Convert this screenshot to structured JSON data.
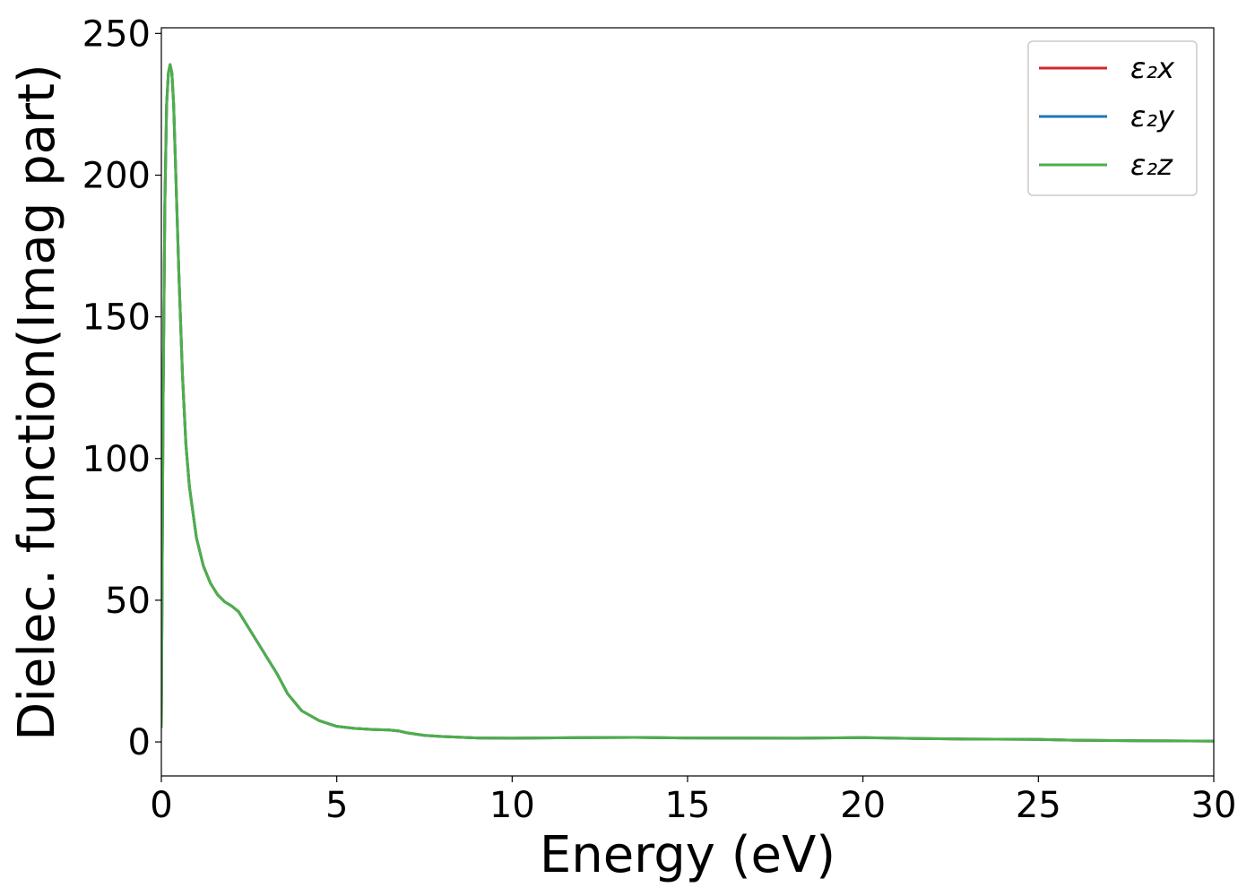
{
  "chart_data": {
    "type": "line",
    "title": "",
    "xlabel": "Energy (eV)",
    "ylabel": "Dielec. function(Imag part)",
    "xlim": [
      0,
      30
    ],
    "ylim": [
      -12,
      252
    ],
    "xticks": [
      0,
      5,
      10,
      15,
      20,
      25,
      30
    ],
    "yticks": [
      0,
      50,
      100,
      150,
      200,
      250
    ],
    "grid": false,
    "legend_position": "top-right",
    "series": [
      {
        "name": "ε₂x",
        "legend_sub": "x",
        "color": "#d62728",
        "x": [
          0,
          0.05,
          0.1,
          0.15,
          0.2,
          0.25,
          0.3,
          0.35,
          0.4,
          0.5,
          0.6,
          0.7,
          0.8,
          1.0,
          1.2,
          1.4,
          1.6,
          1.8,
          2.0,
          2.2,
          2.4,
          2.6,
          2.8,
          3.0,
          3.3,
          3.6,
          4.0,
          4.5,
          5.0,
          5.5,
          6.0,
          6.5,
          6.8,
          7.0,
          7.5,
          8.0,
          9.0,
          10.0,
          12.0,
          13.5,
          15.0,
          18.0,
          20.0,
          21.0,
          23.0,
          25.0,
          26.0,
          28.0,
          30.0
        ],
        "y": [
          5,
          120,
          190,
          225,
          236,
          239,
          236,
          225,
          205,
          165,
          130,
          105,
          90,
          72,
          62,
          56,
          52,
          49.5,
          48,
          46,
          42,
          38,
          34,
          30,
          24,
          17,
          11,
          7.5,
          5.5,
          4.8,
          4.4,
          4.2,
          3.8,
          3.2,
          2.3,
          1.9,
          1.4,
          1.3,
          1.5,
          1.6,
          1.4,
          1.3,
          1.5,
          1.3,
          1.0,
          0.9,
          0.6,
          0.4,
          0.3
        ]
      },
      {
        "name": "ε₂y",
        "legend_sub": "y",
        "color": "#1f77b4",
        "x": [
          0,
          0.05,
          0.1,
          0.15,
          0.2,
          0.25,
          0.3,
          0.35,
          0.4,
          0.5,
          0.6,
          0.7,
          0.8,
          1.0,
          1.2,
          1.4,
          1.6,
          1.8,
          2.0,
          2.2,
          2.4,
          2.6,
          2.8,
          3.0,
          3.3,
          3.6,
          4.0,
          4.5,
          5.0,
          5.5,
          6.0,
          6.5,
          6.8,
          7.0,
          7.5,
          8.0,
          9.0,
          10.0,
          12.0,
          13.5,
          15.0,
          18.0,
          20.0,
          21.0,
          23.0,
          25.0,
          26.0,
          28.0,
          30.0
        ],
        "y": [
          5,
          120,
          190,
          225,
          236,
          239,
          236,
          225,
          205,
          165,
          130,
          105,
          90,
          72,
          62,
          56,
          52,
          49.5,
          48,
          46,
          42,
          38,
          34,
          30,
          24,
          17,
          11,
          7.5,
          5.5,
          4.8,
          4.4,
          4.2,
          3.8,
          3.2,
          2.3,
          1.9,
          1.4,
          1.3,
          1.5,
          1.6,
          1.4,
          1.3,
          1.5,
          1.3,
          1.0,
          0.9,
          0.6,
          0.4,
          0.3
        ]
      },
      {
        "name": "ε₂z",
        "legend_sub": "z",
        "color": "#4daf4a",
        "x": [
          0,
          0.05,
          0.1,
          0.15,
          0.2,
          0.25,
          0.3,
          0.35,
          0.4,
          0.5,
          0.6,
          0.7,
          0.8,
          1.0,
          1.2,
          1.4,
          1.6,
          1.8,
          2.0,
          2.2,
          2.4,
          2.6,
          2.8,
          3.0,
          3.3,
          3.6,
          4.0,
          4.5,
          5.0,
          5.5,
          6.0,
          6.5,
          6.8,
          7.0,
          7.5,
          8.0,
          9.0,
          10.0,
          12.0,
          13.5,
          15.0,
          18.0,
          20.0,
          21.0,
          23.0,
          25.0,
          26.0,
          28.0,
          30.0
        ],
        "y": [
          5,
          120,
          190,
          225,
          236,
          239,
          236,
          225,
          205,
          165,
          130,
          105,
          90,
          72,
          62,
          56,
          52,
          49.5,
          48,
          46,
          42,
          38,
          34,
          30,
          24,
          17,
          11,
          7.5,
          5.5,
          4.8,
          4.4,
          4.2,
          3.8,
          3.2,
          2.3,
          1.9,
          1.4,
          1.3,
          1.5,
          1.6,
          1.4,
          1.3,
          1.5,
          1.3,
          1.0,
          0.9,
          0.6,
          0.4,
          0.3
        ]
      }
    ]
  }
}
